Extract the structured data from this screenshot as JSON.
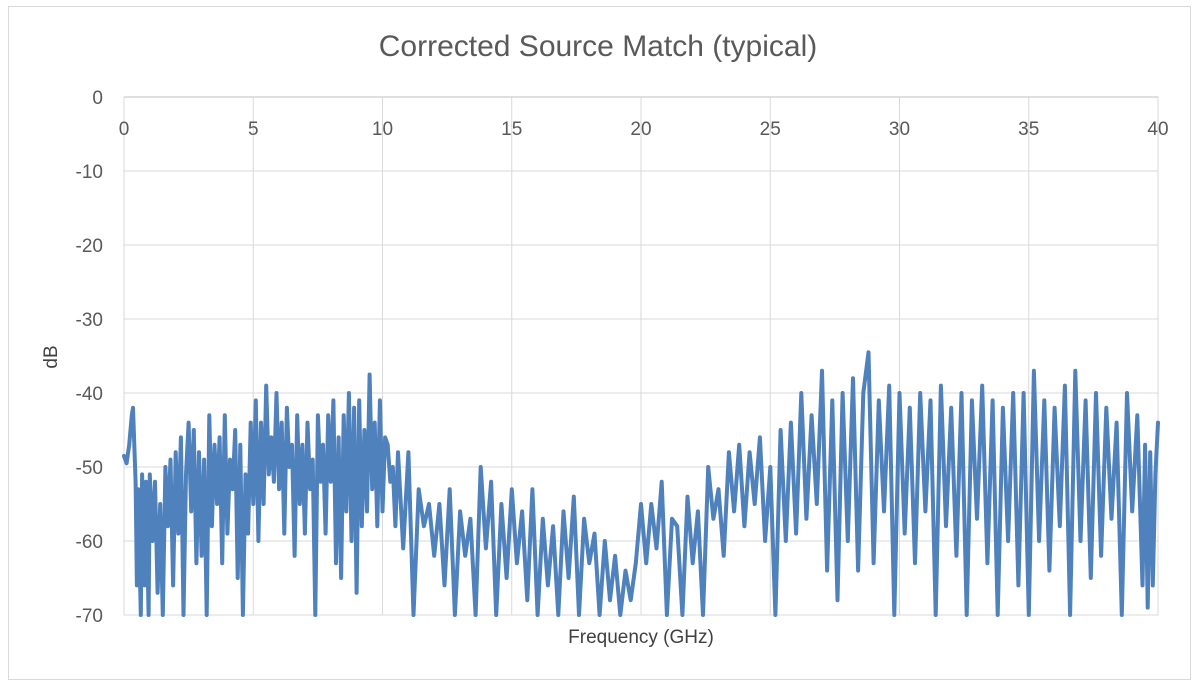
{
  "chart_data": {
    "type": "line",
    "title": "Corrected Source Match (typical)",
    "xlabel": "Frequency (GHz)",
    "ylabel": "dB",
    "xlim": [
      0,
      40
    ],
    "ylim": [
      -70,
      0
    ],
    "x_ticks": [
      "0",
      "5",
      "10",
      "15",
      "20",
      "25",
      "30",
      "35",
      "40"
    ],
    "y_ticks": [
      "0",
      "-10",
      "-20",
      "-30",
      "-40",
      "-50",
      "-60",
      "-70"
    ],
    "grid": true,
    "legend": "none",
    "series": [
      {
        "name": "Corrected Source Match",
        "color": "#4f81bd",
        "points": [
          [
            0.0,
            -48.5
          ],
          [
            0.1,
            -49.5
          ],
          [
            0.2,
            -47
          ],
          [
            0.3,
            -43
          ],
          [
            0.35,
            -42
          ],
          [
            0.45,
            -52
          ],
          [
            0.5,
            -66
          ],
          [
            0.55,
            -53
          ],
          [
            0.6,
            -62
          ],
          [
            0.65,
            -70
          ],
          [
            0.7,
            -51
          ],
          [
            0.8,
            -66
          ],
          [
            0.85,
            -52
          ],
          [
            0.95,
            -70
          ],
          [
            1.0,
            -51
          ],
          [
            1.1,
            -60
          ],
          [
            1.2,
            -52
          ],
          [
            1.3,
            -67
          ],
          [
            1.4,
            -55
          ],
          [
            1.5,
            -70
          ],
          [
            1.6,
            -50
          ],
          [
            1.7,
            -58
          ],
          [
            1.8,
            -49
          ],
          [
            1.9,
            -66
          ],
          [
            2.0,
            -48
          ],
          [
            2.1,
            -59
          ],
          [
            2.2,
            -46
          ],
          [
            2.3,
            -70
          ],
          [
            2.4,
            -51
          ],
          [
            2.5,
            -44
          ],
          [
            2.6,
            -56
          ],
          [
            2.7,
            -45
          ],
          [
            2.8,
            -63
          ],
          [
            2.9,
            -48
          ],
          [
            3.0,
            -62
          ],
          [
            3.1,
            -49
          ],
          [
            3.2,
            -70
          ],
          [
            3.3,
            -43
          ],
          [
            3.4,
            -58
          ],
          [
            3.5,
            -47
          ],
          [
            3.6,
            -55
          ],
          [
            3.7,
            -46
          ],
          [
            3.8,
            -63
          ],
          [
            3.9,
            -43
          ],
          [
            4.0,
            -59
          ],
          [
            4.1,
            -49
          ],
          [
            4.2,
            -53
          ],
          [
            4.3,
            -45
          ],
          [
            4.4,
            -65
          ],
          [
            4.5,
            -47
          ],
          [
            4.6,
            -70
          ],
          [
            4.7,
            -51
          ],
          [
            4.8,
            -59
          ],
          [
            4.9,
            -44
          ],
          [
            5.0,
            -55
          ],
          [
            5.1,
            -41
          ],
          [
            5.2,
            -60
          ],
          [
            5.3,
            -44
          ],
          [
            5.4,
            -55
          ],
          [
            5.5,
            -39
          ],
          [
            5.6,
            -51
          ],
          [
            5.7,
            -46
          ],
          [
            5.8,
            -52
          ],
          [
            5.9,
            -40
          ],
          [
            6.0,
            -53
          ],
          [
            6.1,
            -44
          ],
          [
            6.2,
            -59
          ],
          [
            6.3,
            -42
          ],
          [
            6.4,
            -50
          ],
          [
            6.5,
            -47
          ],
          [
            6.6,
            -62
          ],
          [
            6.7,
            -43
          ],
          [
            6.8,
            -55
          ],
          [
            6.9,
            -47
          ],
          [
            7.0,
            -59
          ],
          [
            7.1,
            -44
          ],
          [
            7.2,
            -53
          ],
          [
            7.3,
            -49
          ],
          [
            7.4,
            -70
          ],
          [
            7.5,
            -43
          ],
          [
            7.6,
            -52
          ],
          [
            7.7,
            -47
          ],
          [
            7.8,
            -59
          ],
          [
            7.9,
            -43
          ],
          [
            8.0,
            -52
          ],
          [
            8.1,
            -41
          ],
          [
            8.2,
            -63
          ],
          [
            8.3,
            -46
          ],
          [
            8.4,
            -65
          ],
          [
            8.5,
            -43
          ],
          [
            8.6,
            -56
          ],
          [
            8.7,
            -40
          ],
          [
            8.8,
            -60
          ],
          [
            8.9,
            -42
          ],
          [
            9.0,
            -67
          ],
          [
            9.1,
            -41
          ],
          [
            9.2,
            -58
          ],
          [
            9.3,
            -45
          ],
          [
            9.4,
            -56
          ],
          [
            9.5,
            -37.5
          ],
          [
            9.6,
            -53
          ],
          [
            9.7,
            -44
          ],
          [
            9.8,
            -58
          ],
          [
            9.9,
            -41
          ],
          [
            10.0,
            -56
          ],
          [
            10.1,
            -46
          ],
          [
            10.2,
            -47
          ],
          [
            10.3,
            -52
          ],
          [
            10.4,
            -50
          ],
          [
            10.5,
            -58
          ],
          [
            10.6,
            -48
          ],
          [
            10.8,
            -61
          ],
          [
            11.0,
            -48
          ],
          [
            11.2,
            -70
          ],
          [
            11.4,
            -53
          ],
          [
            11.6,
            -58
          ],
          [
            11.8,
            -55
          ],
          [
            12.0,
            -62
          ],
          [
            12.2,
            -55
          ],
          [
            12.4,
            -66
          ],
          [
            12.6,
            -53
          ],
          [
            12.8,
            -70
          ],
          [
            13.0,
            -56
          ],
          [
            13.2,
            -62
          ],
          [
            13.4,
            -57
          ],
          [
            13.6,
            -70
          ],
          [
            13.8,
            -50
          ],
          [
            14.0,
            -61
          ],
          [
            14.2,
            -52
          ],
          [
            14.4,
            -70
          ],
          [
            14.6,
            -55
          ],
          [
            14.8,
            -65
          ],
          [
            15.0,
            -53
          ],
          [
            15.2,
            -63
          ],
          [
            15.4,
            -56
          ],
          [
            15.6,
            -68
          ],
          [
            15.8,
            -53
          ],
          [
            16.0,
            -70
          ],
          [
            16.2,
            -57
          ],
          [
            16.4,
            -66
          ],
          [
            16.6,
            -58
          ],
          [
            16.8,
            -70
          ],
          [
            17.0,
            -56
          ],
          [
            17.2,
            -65
          ],
          [
            17.4,
            -54
          ],
          [
            17.6,
            -70
          ],
          [
            17.8,
            -57
          ],
          [
            18.0,
            -63
          ],
          [
            18.2,
            -59
          ],
          [
            18.4,
            -70
          ],
          [
            18.6,
            -60
          ],
          [
            18.8,
            -68
          ],
          [
            19.0,
            -62
          ],
          [
            19.2,
            -70
          ],
          [
            19.4,
            -64
          ],
          [
            19.6,
            -68
          ],
          [
            19.8,
            -63
          ],
          [
            20.0,
            -55
          ],
          [
            20.2,
            -63
          ],
          [
            20.4,
            -55
          ],
          [
            20.6,
            -61
          ],
          [
            20.8,
            -52
          ],
          [
            21.0,
            -70
          ],
          [
            21.2,
            -57
          ],
          [
            21.4,
            -58
          ],
          [
            21.6,
            -70
          ],
          [
            21.8,
            -54
          ],
          [
            22.0,
            -63
          ],
          [
            22.2,
            -56
          ],
          [
            22.4,
            -70
          ],
          [
            22.6,
            -50
          ],
          [
            22.8,
            -57
          ],
          [
            23.0,
            -53
          ],
          [
            23.2,
            -62
          ],
          [
            23.4,
            -48
          ],
          [
            23.6,
            -56
          ],
          [
            23.8,
            -47
          ],
          [
            24.0,
            -58
          ],
          [
            24.2,
            -48
          ],
          [
            24.4,
            -55
          ],
          [
            24.6,
            -46
          ],
          [
            24.8,
            -60
          ],
          [
            25.0,
            -50
          ],
          [
            25.2,
            -70
          ],
          [
            25.4,
            -45
          ],
          [
            25.6,
            -60
          ],
          [
            25.8,
            -44
          ],
          [
            26.0,
            -59
          ],
          [
            26.2,
            -40
          ],
          [
            26.4,
            -57
          ],
          [
            26.6,
            -43
          ],
          [
            26.8,
            -55
          ],
          [
            27.0,
            -37
          ],
          [
            27.2,
            -64
          ],
          [
            27.4,
            -41
          ],
          [
            27.6,
            -68
          ],
          [
            27.8,
            -40
          ],
          [
            28.0,
            -60
          ],
          [
            28.2,
            -38
          ],
          [
            28.4,
            -64
          ],
          [
            28.6,
            -40
          ],
          [
            28.8,
            -34.5
          ],
          [
            29.0,
            -63
          ],
          [
            29.2,
            -41
          ],
          [
            29.4,
            -56
          ],
          [
            29.6,
            -39
          ],
          [
            29.8,
            -70
          ],
          [
            30.0,
            -40
          ],
          [
            30.2,
            -59
          ],
          [
            30.4,
            -42
          ],
          [
            30.6,
            -63
          ],
          [
            30.8,
            -40
          ],
          [
            31.0,
            -56
          ],
          [
            31.2,
            -41
          ],
          [
            31.4,
            -70
          ],
          [
            31.6,
            -39
          ],
          [
            31.8,
            -58
          ],
          [
            32.0,
            -42
          ],
          [
            32.2,
            -62
          ],
          [
            32.4,
            -40
          ],
          [
            32.6,
            -70
          ],
          [
            32.8,
            -41
          ],
          [
            33.0,
            -57
          ],
          [
            33.2,
            -39
          ],
          [
            33.4,
            -63
          ],
          [
            33.6,
            -41
          ],
          [
            33.8,
            -70
          ],
          [
            34.0,
            -42
          ],
          [
            34.2,
            -60
          ],
          [
            34.4,
            -40
          ],
          [
            34.6,
            -66
          ],
          [
            34.8,
            -40
          ],
          [
            35.0,
            -70
          ],
          [
            35.2,
            -37
          ],
          [
            35.4,
            -60
          ],
          [
            35.6,
            -41
          ],
          [
            35.8,
            -64
          ],
          [
            36.0,
            -42
          ],
          [
            36.2,
            -58
          ],
          [
            36.4,
            -39
          ],
          [
            36.6,
            -70
          ],
          [
            36.8,
            -37
          ],
          [
            37.0,
            -60
          ],
          [
            37.2,
            -41
          ],
          [
            37.4,
            -65
          ],
          [
            37.6,
            -40
          ],
          [
            37.8,
            -62
          ],
          [
            38.0,
            -42
          ],
          [
            38.2,
            -57
          ],
          [
            38.4,
            -44
          ],
          [
            38.6,
            -70
          ],
          [
            38.8,
            -40
          ],
          [
            39.0,
            -56
          ],
          [
            39.2,
            -43
          ],
          [
            39.4,
            -66
          ],
          [
            39.5,
            -47
          ],
          [
            39.6,
            -69
          ],
          [
            39.7,
            -48
          ],
          [
            39.8,
            -66
          ],
          [
            39.9,
            -51
          ],
          [
            40.0,
            -44
          ]
        ]
      }
    ]
  }
}
